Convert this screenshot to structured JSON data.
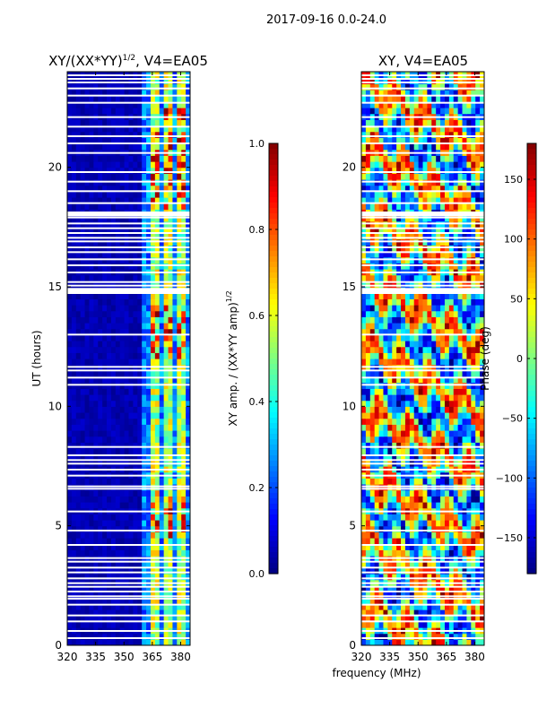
{
  "suptitle": "2017-09-16 0.0-24.0",
  "xlabel_shared": "frequency (MHz)",
  "chart_data": [
    {
      "type": "heatmap",
      "title_main": "XY/(XX*YY)",
      "title_sup": "1/2",
      "title_rest": ", V4=EA05",
      "ylabel": "UT (hours)",
      "xlim": [
        320,
        385
      ],
      "ylim": [
        0,
        24
      ],
      "xticks": [
        320,
        335,
        350,
        365,
        380
      ],
      "yticks": [
        0,
        5,
        10,
        15,
        20
      ],
      "colorbar": {
        "label_main": "XY amp. / (XX*YY amp)",
        "label_sup": "1/2",
        "range": [
          0.0,
          1.0
        ],
        "ticks": [
          "0.0",
          "0.2",
          "0.4",
          "0.6",
          "0.8",
          "1.0"
        ]
      }
    },
    {
      "type": "heatmap",
      "title": "XY, V4=EA05",
      "xlim": [
        320,
        385
      ],
      "ylim": [
        0,
        24
      ],
      "xticks": [
        320,
        335,
        350,
        365,
        380
      ],
      "yticks": [
        0,
        5,
        10,
        15,
        20
      ],
      "colorbar": {
        "label": "Phase (deg)",
        "range": [
          -180,
          180
        ],
        "ticks": [
          "150",
          "100",
          "50",
          "0",
          "−50",
          "−100",
          "−150"
        ],
        "tick_values": [
          150,
          100,
          50,
          0,
          -50,
          -100,
          -150
        ]
      }
    }
  ],
  "gap_hours": [
    0.3,
    0.6,
    1.0,
    1.25,
    1.7,
    1.95,
    2.05,
    2.25,
    2.45,
    2.6,
    2.8,
    3.05,
    3.25,
    3.5,
    3.65,
    4.2,
    4.8,
    5.6,
    6.55,
    6.65,
    7.1,
    7.35,
    7.6,
    7.75,
    7.95,
    8.3,
    10.9,
    11.2,
    11.5,
    11.65,
    13.0,
    14.8,
    15.05,
    15.2,
    15.6,
    15.9,
    16.15,
    16.45,
    16.65,
    16.9,
    17.05,
    17.25,
    17.45,
    17.65,
    17.9,
    18.5,
    19.0,
    19.4,
    19.8,
    20.6,
    21.0,
    21.3,
    21.7,
    22.1,
    22.7,
    23.0,
    23.3,
    23.55,
    23.7,
    23.85
  ],
  "gap_blocks": [
    [
      17.95,
      18.15
    ],
    [
      14.7,
      14.95
    ]
  ],
  "hot_spans": [
    [
      4.5,
      6.4
    ],
    [
      11.9,
      14.4
    ],
    [
      18.2,
      21.6
    ],
    [
      22.0,
      22.6
    ]
  ]
}
